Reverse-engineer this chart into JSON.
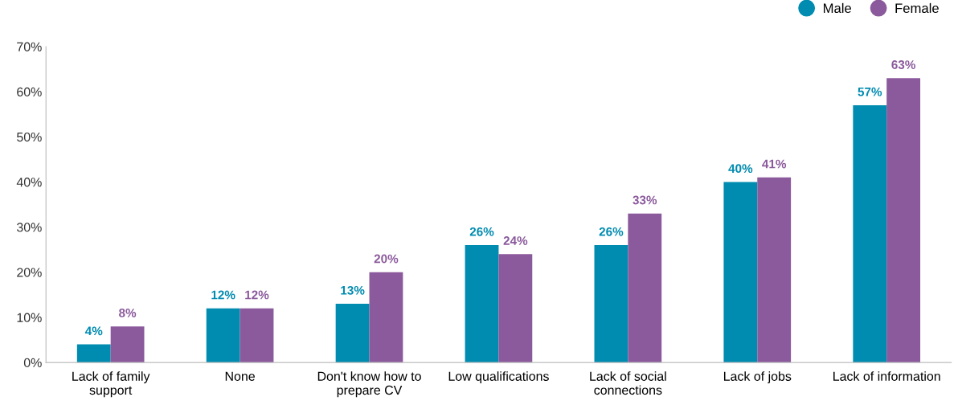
{
  "chart_data": {
    "type": "bar",
    "categories": [
      "Lack of family\nsupport",
      "None",
      "Don't know how to\nprepare CV",
      "Low qualifications",
      "Lack of social\nconnections",
      "Lack of jobs",
      "Lack of information"
    ],
    "series": [
      {
        "name": "Male",
        "color": "#008bb0",
        "values": [
          4,
          12,
          13,
          26,
          26,
          40,
          57
        ],
        "value_labels": [
          "4%",
          "12%",
          "13%",
          "26%",
          "26%",
          "40%",
          "57%"
        ]
      },
      {
        "name": "Female",
        "color": "#8b5a9c",
        "values": [
          8,
          12,
          20,
          24,
          33,
          41,
          63
        ],
        "value_labels": [
          "8%",
          "12%",
          "20%",
          "24%",
          "33%",
          "41%",
          "63%"
        ]
      }
    ],
    "ylim": [
      0,
      70
    ],
    "yticks": [
      {
        "value": 0,
        "label": "0%"
      },
      {
        "value": 10,
        "label": "10%"
      },
      {
        "value": 20,
        "label": "20%"
      },
      {
        "value": 30,
        "label": "30%"
      },
      {
        "value": 40,
        "label": "40%"
      },
      {
        "value": 50,
        "label": "50%"
      },
      {
        "value": 60,
        "label": "60%"
      },
      {
        "value": 70,
        "label": "70%"
      }
    ],
    "grid": false,
    "legend": "top right"
  }
}
